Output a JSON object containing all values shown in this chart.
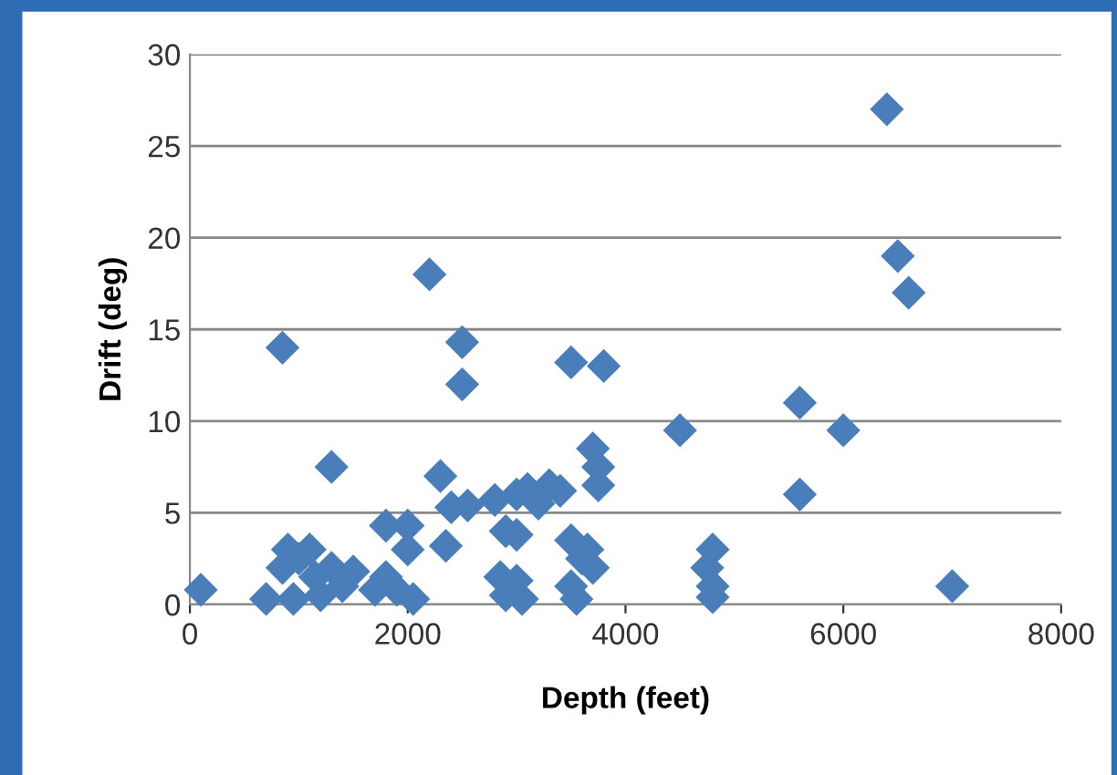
{
  "chart_data": {
    "type": "scatter",
    "xlabel": "Depth (feet)",
    "ylabel": "Drift (deg)",
    "x": [
      100,
      700,
      850,
      900,
      850,
      950,
      1000,
      1100,
      1150,
      1200,
      1300,
      1300,
      1400,
      1500,
      1700,
      1800,
      1800,
      1900,
      2000,
      2000,
      2050,
      2200,
      2300,
      2350,
      2400,
      2500,
      2500,
      2550,
      2800,
      2850,
      2900,
      2900,
      3000,
      3000,
      3000,
      3050,
      3100,
      3200,
      3300,
      3400,
      3500,
      3500,
      3500,
      3550,
      3600,
      3650,
      3700,
      3700,
      3800,
      3750,
      3750,
      4500,
      4800,
      4750,
      4800,
      4800,
      5600,
      5600,
      6000,
      6400,
      6500,
      6600,
      7000
    ],
    "values": [
      0.8,
      0.3,
      14,
      3,
      2,
      0.3,
      2.5,
      3,
      1.5,
      0.5,
      7.5,
      2,
      1,
      1.8,
      0.8,
      4.3,
      1.5,
      0.8,
      4.3,
      3,
      0.3,
      18,
      7,
      3.2,
      5.3,
      14.3,
      12,
      5.4,
      5.7,
      1.5,
      0.5,
      4,
      6,
      3.8,
      1.3,
      0.3,
      6.3,
      5.5,
      6.5,
      6.2,
      13.2,
      3.5,
      1,
      0.3,
      2.5,
      3,
      8.5,
      2,
      13,
      7.5,
      6.5,
      9.5,
      3,
      2,
      1,
      0.4,
      11,
      6,
      9.5,
      27,
      19,
      17,
      1
    ],
    "color": "#4a7ebb",
    "marker": "diamond",
    "xlim": [
      0,
      8000
    ],
    "ylim": [
      0,
      30
    ],
    "xticks": [
      0,
      2000,
      4000,
      6000,
      8000
    ],
    "yticks": [
      0,
      5,
      10,
      15,
      20,
      25,
      30
    ],
    "grid": "y"
  }
}
